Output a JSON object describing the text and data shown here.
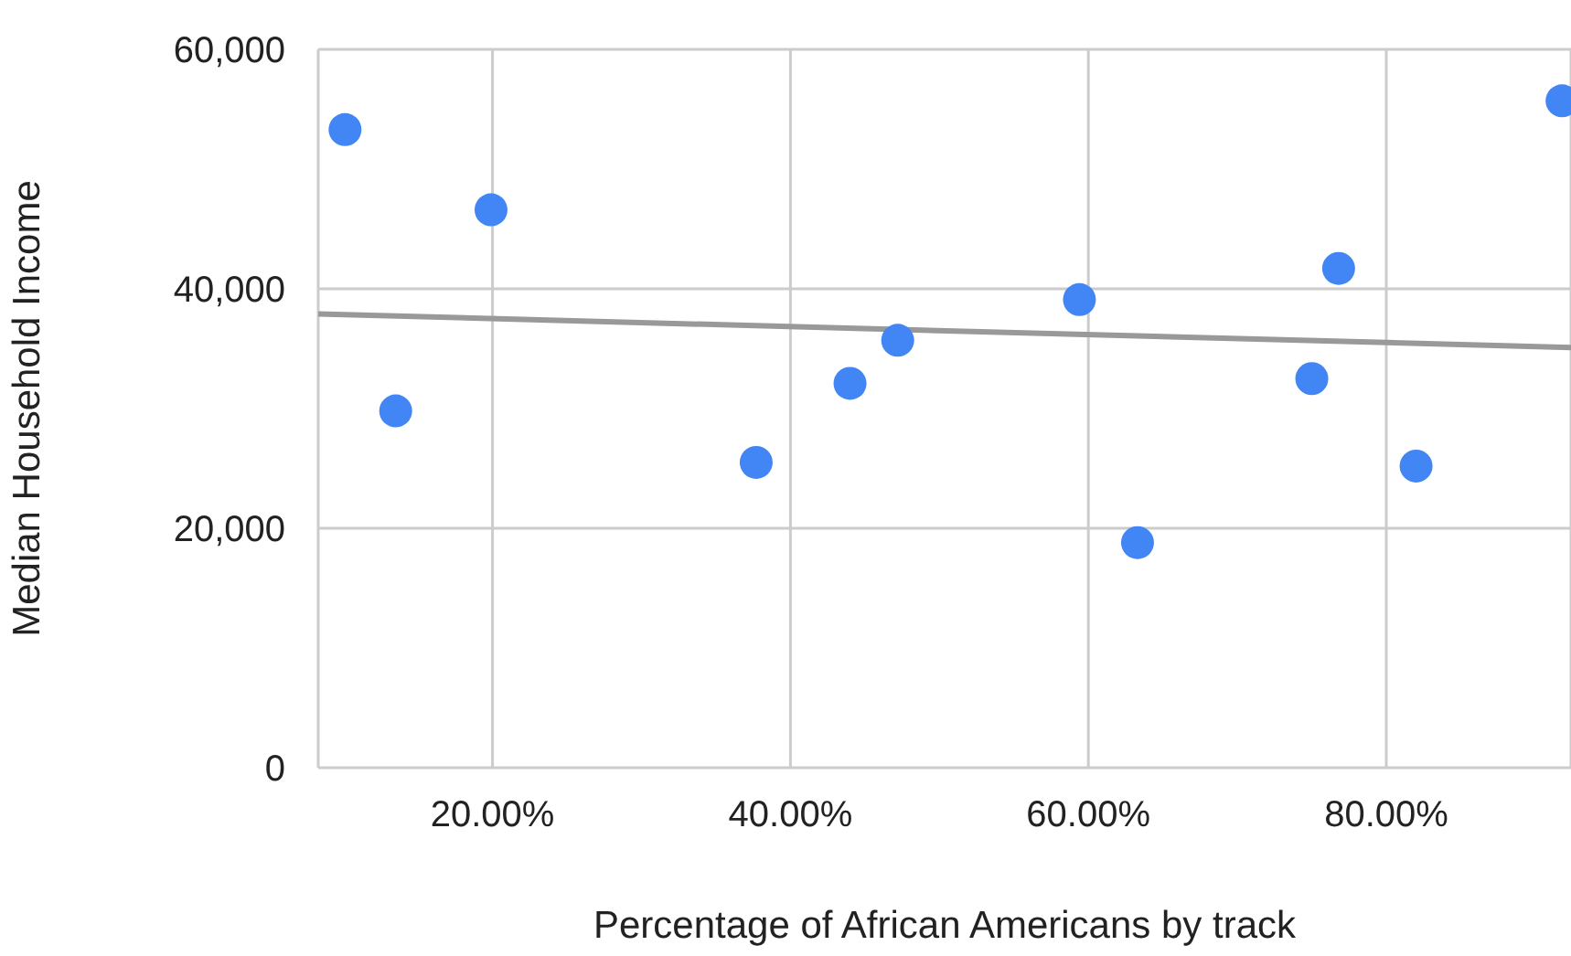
{
  "chart_data": {
    "type": "scatter",
    "xlabel": "Percentage of African Americans by  track",
    "ylabel": "Median Household Income",
    "xlim": [
      8.3,
      92.4
    ],
    "xticks": [
      {
        "value": 20,
        "label": "20.00%"
      },
      {
        "value": 40,
        "label": "40.00%"
      },
      {
        "value": 60,
        "label": "60.00%"
      },
      {
        "value": 80,
        "label": "80.00%"
      }
    ],
    "ylim": [
      0,
      60000
    ],
    "yticks": [
      {
        "value": 0,
        "label": "0"
      },
      {
        "value": 20000,
        "label": "20,000"
      },
      {
        "value": 40000,
        "label": "40,000"
      },
      {
        "value": 60000,
        "label": "60,000"
      }
    ],
    "grid": true,
    "marker": "circle",
    "series": [
      {
        "type": "scatter",
        "color": "#4285f4",
        "x": [
          10.1,
          13.5,
          19.9,
          37.7,
          44.0,
          47.2,
          59.4,
          63.3,
          75.0,
          76.8,
          82.0,
          91.8
        ],
        "values": [
          53300,
          29800,
          46600,
          25500,
          32100,
          35700,
          39100,
          18800,
          32500,
          41700,
          25200,
          55700
        ]
      },
      {
        "type": "line",
        "color": "#999999",
        "line_style": "solid",
        "marker": "none",
        "x": [
          8.3,
          92.4
        ],
        "values": [
          37900,
          35100
        ]
      }
    ]
  }
}
